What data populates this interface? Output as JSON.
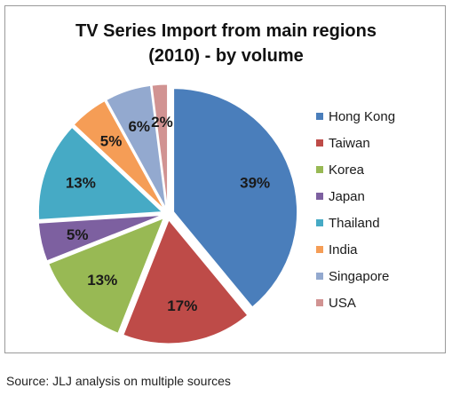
{
  "chart_data": {
    "type": "pie",
    "title_line1": "TV Series Import from main regions",
    "title_line2": "(2010) - by volume",
    "categories": [
      "Hong Kong",
      "Taiwan",
      "Korea",
      "Japan",
      "Thailand",
      "India",
      "Singapore",
      "USA"
    ],
    "values": [
      39,
      17,
      13,
      5,
      13,
      5,
      6,
      2
    ],
    "value_labels": [
      "39%",
      "17%",
      "13%",
      "5%",
      "13%",
      "5%",
      "6%",
      "2%"
    ],
    "colors": [
      "#4a7ebb",
      "#be4b48",
      "#98b954",
      "#7d60a0",
      "#46aac5",
      "#f59d56",
      "#93a9cf",
      "#d19392"
    ],
    "legend_position": "right",
    "exploded": true
  },
  "source": "Source: JLJ analysis on multiple sources"
}
